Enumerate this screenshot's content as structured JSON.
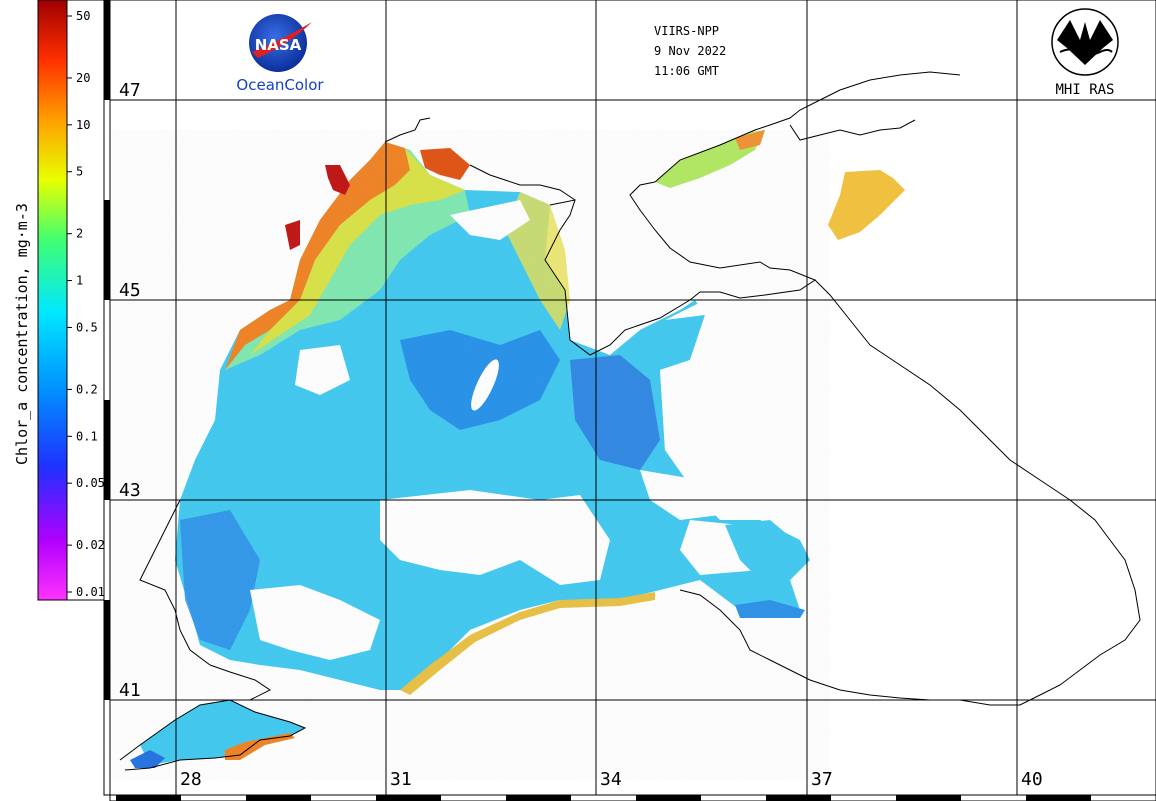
{
  "header": {
    "satellite": "VIIRS-NPP",
    "date": "9 Nov 2022",
    "time": "11:06 GMT"
  },
  "logos": {
    "nasa_text": "NASA",
    "oceancolor_text": "OceanColor",
    "mhi_text": "MHI RAS"
  },
  "colorbar": {
    "title": "Chlor_a concentration, mg·m-3",
    "ticks": [
      "50",
      "20",
      "10",
      "5",
      "2",
      "1",
      "0.5",
      "0.2",
      "0.1",
      "0.05",
      "0.02",
      "0.01"
    ],
    "colors": [
      "#ff33ff",
      "#b000ff",
      "#4020ff",
      "#0080ff",
      "#00e0ff",
      "#40ff80",
      "#ffff00",
      "#ff9000",
      "#ff3000",
      "#d00000",
      "#800000"
    ]
  },
  "map": {
    "lat_labels": [
      "47",
      "45",
      "43",
      "41"
    ],
    "lon_labels": [
      "28",
      "31",
      "34",
      "37",
      "40"
    ],
    "water_color": "#40c8e8",
    "coast_color": "#000000"
  }
}
